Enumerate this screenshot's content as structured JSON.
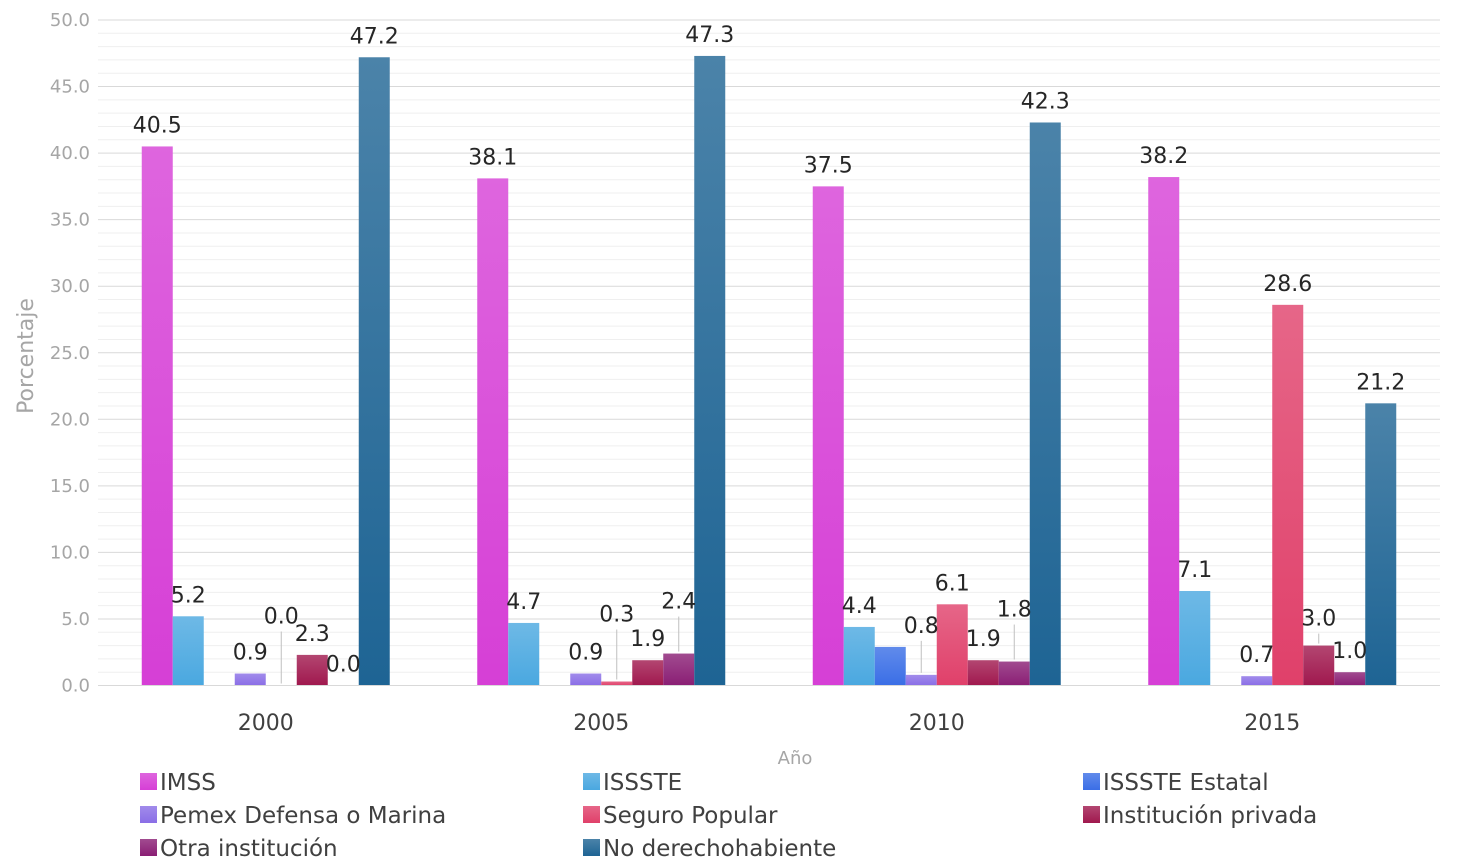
{
  "chart_data": {
    "type": "bar",
    "title": "",
    "xlabel": "Año",
    "ylabel": "Porcentaje",
    "ylim": [
      0,
      50
    ],
    "yticks": [
      "0.0",
      "5.0",
      "10.0",
      "15.0",
      "20.0",
      "25.0",
      "30.0",
      "35.0",
      "40.0",
      "45.0",
      "50.0"
    ],
    "grid": true,
    "legend_position": "bottom",
    "categories": [
      "2000",
      "2005",
      "2010",
      "2015"
    ],
    "series": [
      {
        "name": "IMSS",
        "color": "#d63fd6",
        "values": [
          40.5,
          38.1,
          37.5,
          38.2
        ],
        "labels": [
          "40.5",
          "38.1",
          "37.5",
          "38.2"
        ]
      },
      {
        "name": "ISSSTE",
        "color": "#4aa8e0",
        "values": [
          5.2,
          4.7,
          4.4,
          7.1
        ],
        "labels": [
          "5.2",
          "4.7",
          "4.4",
          "7.1"
        ]
      },
      {
        "name": "ISSSTE Estatal",
        "color": "#3a6ee6",
        "values": [
          null,
          null,
          2.9,
          null
        ],
        "labels": [
          "",
          "",
          "",
          ""
        ]
      },
      {
        "name": "Pemex Defensa o Marina",
        "color": "#8a6ee6",
        "values": [
          0.9,
          0.9,
          0.8,
          0.7
        ],
        "labels": [
          "0.9",
          "0.9",
          "0.8",
          "0.7"
        ]
      },
      {
        "name": "Seguro Popular",
        "color": "#e0406a",
        "values": [
          0.0,
          0.3,
          6.1,
          28.6
        ],
        "labels": [
          "0.0",
          "0.3",
          "6.1",
          "28.6"
        ]
      },
      {
        "name": "Institución privada",
        "color": "#a0184e",
        "values": [
          2.3,
          1.9,
          1.9,
          3.0
        ],
        "labels": [
          "2.3",
          "1.9",
          "1.9",
          "3.0"
        ]
      },
      {
        "name": "Otra institución",
        "color": "#8a1e74",
        "values": [
          0.0,
          2.4,
          1.8,
          1.0
        ],
        "labels": [
          "0.0",
          "2.4",
          "1.8",
          "1.0"
        ]
      },
      {
        "name": "No derechohabiente",
        "color": "#1e6494",
        "values": [
          47.2,
          47.3,
          42.3,
          21.2
        ],
        "labels": [
          "47.2",
          "47.3",
          "42.3",
          "21.2"
        ]
      }
    ]
  }
}
